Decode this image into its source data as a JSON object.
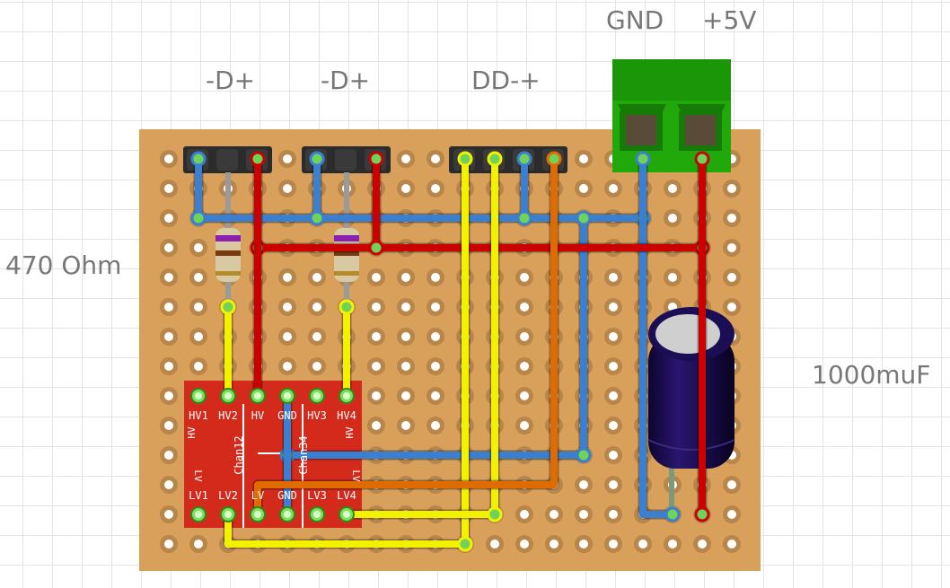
{
  "labels": {
    "header_left": "-D+",
    "header_mid": "-D+",
    "header_right": "DD-+",
    "gnd": "GND",
    "plus5v": "+5V",
    "resistor": "470 Ohm",
    "capacitor": "1000muF"
  },
  "chip": {
    "top_pins": [
      "HV1",
      "HV2",
      "HV",
      "GND",
      "HV3",
      "HV4"
    ],
    "bottom_pins": [
      "LV1",
      "LV2",
      "LV",
      "GND",
      "LV3",
      "LV4"
    ],
    "side_left_top": "HV",
    "side_left_bottom": "LV",
    "side_right_top": "HV",
    "side_right_bottom": "LV",
    "chan_left": "Chan12",
    "chan_right": "Chan34"
  },
  "colors": {
    "board": "#d9a05b",
    "hole_ring": "#b8864a",
    "wire_red": "#cc0000",
    "wire_blue": "#3a7fd0",
    "wire_yellow": "#f2f200",
    "wire_orange": "#e06b00",
    "terminal_green": "#21a80b",
    "chip_red": "#d42a1c",
    "capacitor_body": "#1a0a4a"
  }
}
